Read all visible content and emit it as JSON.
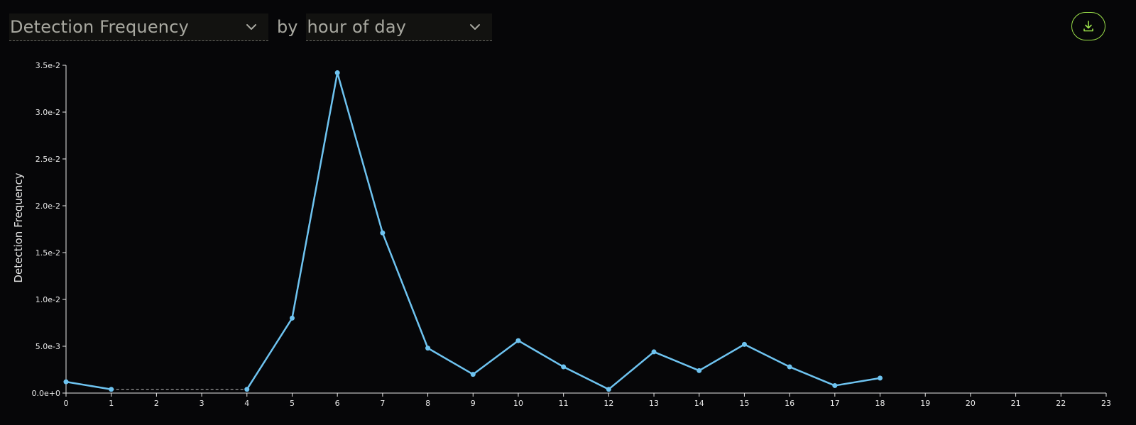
{
  "controls": {
    "metric_value": "Detection Frequency",
    "by_label": "by",
    "groupby_value": "hour of day",
    "chevron_icon": "chevron-down-icon",
    "download_icon": "download-icon"
  },
  "colors": {
    "background": "#060608",
    "line": "#6ec3f0",
    "accent": "#9be04a",
    "text": "#e8e8e8"
  },
  "chart_data": {
    "type": "line",
    "ylabel": "Detection Frequency",
    "xlabel": "",
    "x_ticks": [
      0,
      1,
      2,
      3,
      4,
      5,
      6,
      7,
      8,
      9,
      10,
      11,
      12,
      13,
      14,
      15,
      16,
      17,
      18,
      19,
      20,
      21,
      22,
      23
    ],
    "y_ticks": [
      0,
      0.005,
      0.01,
      0.015,
      0.02,
      0.025,
      0.03,
      0.035
    ],
    "y_tick_labels": [
      "0.0e+0",
      "5.0e-3",
      "1.0e-2",
      "1.5e-2",
      "2.0e-2",
      "2.5e-2",
      "3.0e-2",
      "3.5e-2"
    ],
    "xlim": [
      0,
      23
    ],
    "ylim": [
      0,
      0.035
    ],
    "grid": false,
    "series": [
      {
        "x": [
          0,
          1,
          4,
          5,
          6,
          7,
          8,
          9,
          10,
          11,
          12,
          13,
          14,
          15,
          16,
          17,
          18
        ],
        "values": [
          0.0012,
          0.0004,
          0.0004,
          0.008,
          0.0342,
          0.0171,
          0.0048,
          0.002,
          0.0056,
          0.0028,
          0.0004,
          0.0044,
          0.0024,
          0.0052,
          0.0028,
          0.0008,
          0.0016
        ],
        "gap_dashed_between": [
          1,
          4
        ]
      }
    ]
  }
}
